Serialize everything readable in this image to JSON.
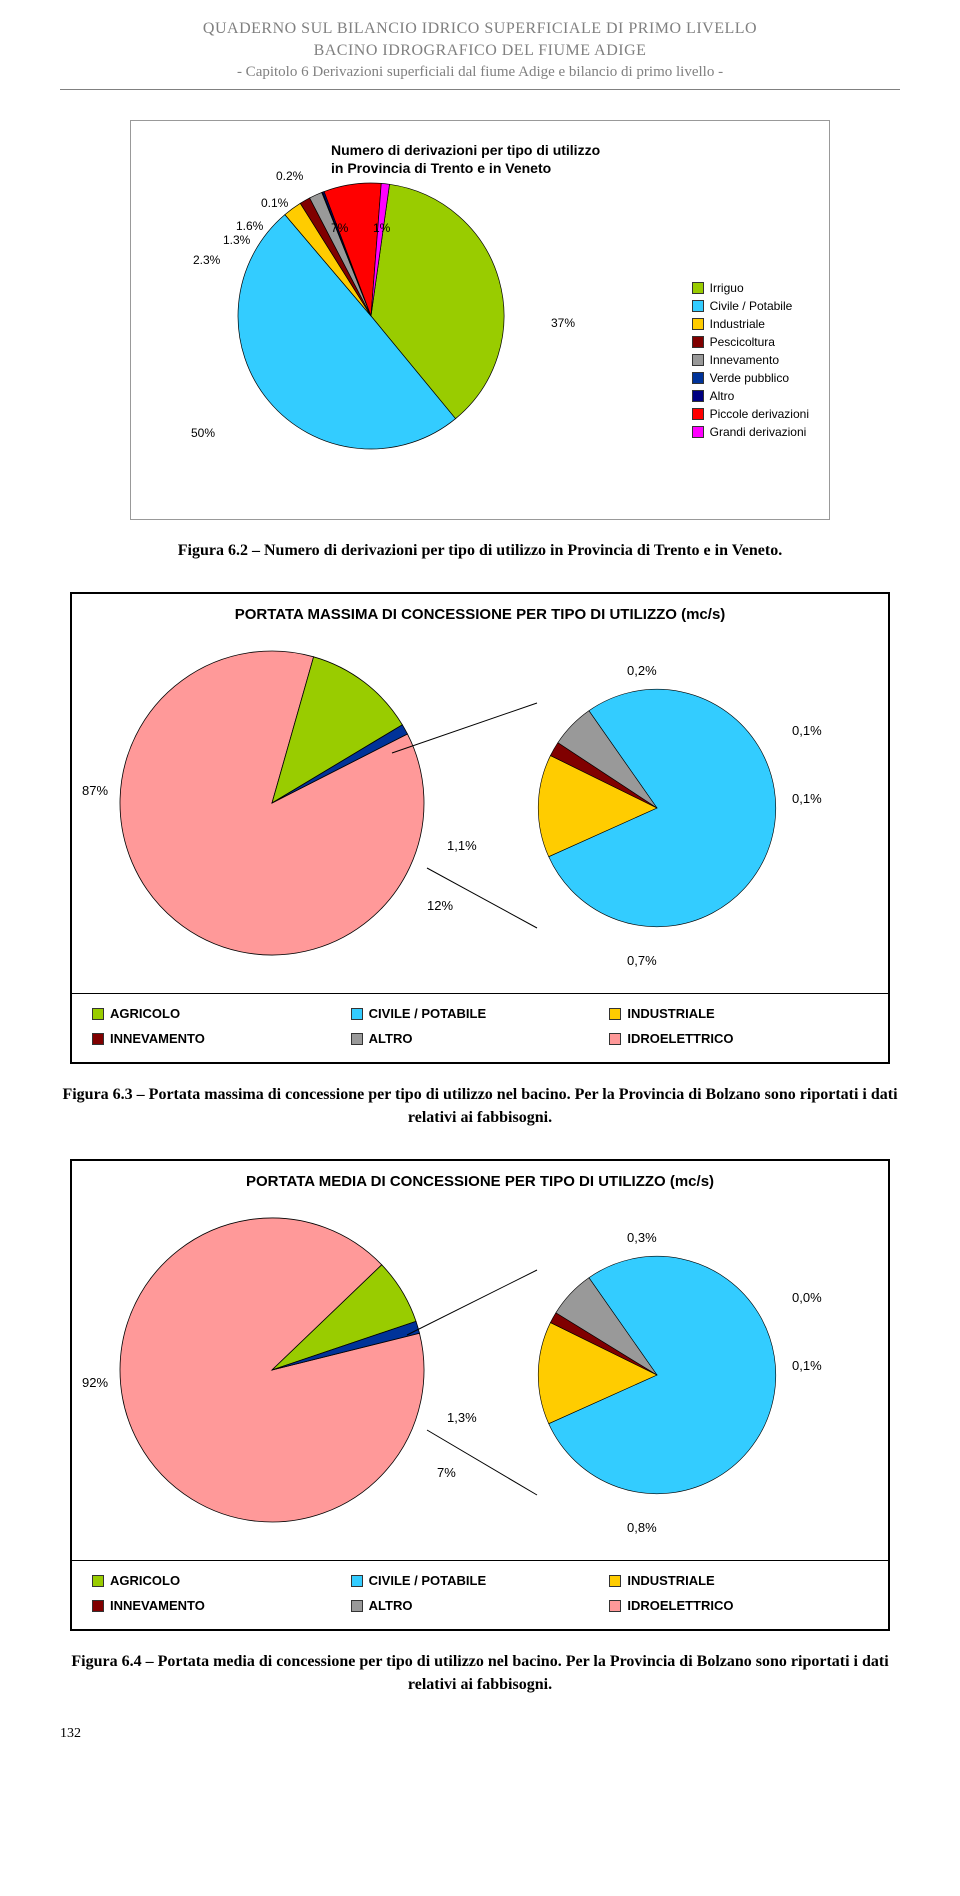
{
  "header": {
    "line1": "QUADERNO SUL BILANCIO IDRICO SUPERFICIALE DI PRIMO LIVELLO",
    "line2": "BACINO IDROGRAFICO DEL FIUME ADIGE",
    "line3": "- Capitolo 6 Derivazioni superficiali dal fiume Adige e bilancio di primo livello -"
  },
  "page_number": "132",
  "chart1": {
    "type": "pie",
    "title_line1": "Numero di derivazioni per tipo di utilizzo",
    "title_line2": "in Provincia di Trento e in Veneto",
    "slices": [
      {
        "label": "Irriguo",
        "value": 37,
        "pct": "37%",
        "color": "#99cc00"
      },
      {
        "label": "Civile / Potabile",
        "value": 50,
        "pct": "50%",
        "color": "#33ccff"
      },
      {
        "label": "Industriale",
        "value": 2.3,
        "pct": "2.3%",
        "color": "#ffcc00"
      },
      {
        "label": "Pescicoltura",
        "value": 1.3,
        "pct": "1.3%",
        "color": "#800000"
      },
      {
        "label": "Innevamento",
        "value": 1.6,
        "pct": "1.6%",
        "color": "#999999"
      },
      {
        "label": "Verde pubblico",
        "value": 0.1,
        "pct": "0.1%",
        "color": "#003399"
      },
      {
        "label": "Altro",
        "value": 0.2,
        "pct": "0.2%",
        "color": "#000080"
      },
      {
        "label": "Piccole derivazioni",
        "value": 7,
        "pct": "7%",
        "color": "#ff0000"
      },
      {
        "label": "Grandi derivazioni",
        "value": 1,
        "pct": "1%",
        "color": "#ff00ff"
      }
    ],
    "outer_labels": {
      "p37": "37%",
      "p50": "50%",
      "p23": "2.3%",
      "p13": "1.3%",
      "p16": "1.6%",
      "p01": "0.1%",
      "p02": "0.2%",
      "p7": "7%",
      "p1": "1%"
    },
    "legend_labels": {
      "irriguo": "Irriguo",
      "civile": "Civile / Potabile",
      "industriale": "Industriale",
      "pescicoltura": "Pescicoltura",
      "innevamento": "Innevamento",
      "verde": "Verde pubblico",
      "altro": "Altro",
      "piccole": "Piccole derivazioni",
      "grandi": "Grandi derivazioni"
    },
    "legend_colors": {
      "irriguo": "#99cc00",
      "civile": "#33ccff",
      "industriale": "#ffcc00",
      "pescicoltura": "#800000",
      "innevamento": "#999999",
      "verde": "#003399",
      "altro": "#000080",
      "piccole": "#ff0000",
      "grandi": "#ff00ff"
    }
  },
  "caption1": "Figura 6.2 – Numero di derivazioni per tipo di utilizzo in Provincia di Trento e in Veneto.",
  "chart2": {
    "type": "pie_of_pie",
    "title": "PORTATA MASSIMA DI CONCESSIONE PER TIPO DI UTILIZZO (mc/s)",
    "big_slices": [
      {
        "label": "IDROELETTRICO",
        "value": 87,
        "color": "#ff9999"
      },
      {
        "label": "rest",
        "value": 13,
        "color": "#33ccff"
      }
    ],
    "big_labels": {
      "hydro": "87%",
      "blue": "1,1%",
      "green": "12%"
    },
    "small_slices": [
      {
        "label": "CIVILE / POTABILE",
        "value": 78,
        "color": "#33ccff"
      },
      {
        "label": "INDUSTRIALE",
        "value": 14,
        "color": "#ffcc00"
      },
      {
        "label": "INNEVAMENTO",
        "value": 2,
        "color": "#800000"
      },
      {
        "label": "ALTRO",
        "value": 6,
        "color": "#999999"
      }
    ],
    "small_labels": {
      "p02": "0,2%",
      "p01a": "0,1%",
      "p01b": "0,1%",
      "p07": "0,7%"
    },
    "legend": {
      "agricolo": {
        "label": "AGRICOLO",
        "color": "#99cc00"
      },
      "civile": {
        "label": "CIVILE / POTABILE",
        "color": "#33ccff"
      },
      "industriale": {
        "label": "INDUSTRIALE",
        "color": "#ffcc00"
      },
      "innevamento": {
        "label": "INNEVAMENTO",
        "color": "#800000"
      },
      "altro": {
        "label": "ALTRO",
        "color": "#999999"
      },
      "idro": {
        "label": "IDROELETTRICO",
        "color": "#ff9999"
      }
    }
  },
  "caption2": "Figura 6.3 – Portata massima di concessione per tipo di utilizzo nel bacino. Per la Provincia di Bolzano sono riportati i dati relativi ai fabbisogni.",
  "chart3": {
    "type": "pie_of_pie",
    "title": "PORTATA MEDIA DI CONCESSIONE PER TIPO DI UTILIZZO  (mc/s)",
    "big_slices": [
      {
        "label": "IDROELETTRICO",
        "value": 92,
        "color": "#ff9999"
      },
      {
        "label": "rest",
        "value": 8,
        "color": "#33ccff"
      }
    ],
    "big_labels": {
      "hydro": "92%",
      "blue": "1,3%",
      "green": "7%"
    },
    "small_slices": [
      {
        "label": "CIVILE / POTABILE",
        "value": 78,
        "color": "#33ccff"
      },
      {
        "label": "INDUSTRIALE",
        "value": 14,
        "color": "#ffcc00"
      },
      {
        "label": "INNEVAMENTO",
        "value": 1.5,
        "color": "#800000"
      },
      {
        "label": "ALTRO",
        "value": 6.5,
        "color": "#999999"
      }
    ],
    "small_labels": {
      "p03": "0,3%",
      "p00": "0,0%",
      "p01": "0,1%",
      "p08": "0,8%"
    },
    "legend": {
      "agricolo": {
        "label": "AGRICOLO",
        "color": "#99cc00"
      },
      "civile": {
        "label": "CIVILE / POTABILE",
        "color": "#33ccff"
      },
      "industriale": {
        "label": "INDUSTRIALE",
        "color": "#ffcc00"
      },
      "innevamento": {
        "label": "INNEVAMENTO",
        "color": "#800000"
      },
      "altro": {
        "label": "ALTRO",
        "color": "#999999"
      },
      "idro": {
        "label": "IDROELETTRICO",
        "color": "#ff9999"
      }
    }
  },
  "caption3": "Figura 6.4 – Portata media di concessione per tipo di utilizzo nel bacino. Per la Provincia di Bolzano sono riportati i dati relativi ai fabbisogni."
}
